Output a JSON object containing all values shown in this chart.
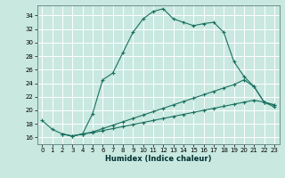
{
  "xlabel": "Humidex (Indice chaleur)",
  "bg_color": "#c8e8e0",
  "grid_color": "#ffffff",
  "line_color": "#1a7060",
  "xlim": [
    -0.5,
    23.5
  ],
  "ylim": [
    15.0,
    35.5
  ],
  "xticks": [
    0,
    1,
    2,
    3,
    4,
    5,
    6,
    7,
    8,
    9,
    10,
    11,
    12,
    13,
    14,
    15,
    16,
    17,
    18,
    19,
    20,
    21,
    22,
    23
  ],
  "yticks": [
    16,
    18,
    20,
    22,
    24,
    26,
    28,
    30,
    32,
    34
  ],
  "line1_x": [
    0,
    1,
    2,
    3,
    4,
    5,
    6,
    7,
    8,
    9,
    10,
    11,
    12,
    13,
    14,
    15,
    16,
    17,
    18,
    19,
    20,
    21,
    22,
    23
  ],
  "line1_y": [
    18.5,
    17.2,
    16.5,
    16.2,
    16.5,
    19.5,
    24.5,
    25.5,
    28.5,
    31.5,
    33.5,
    34.6,
    35.0,
    33.5,
    33.0,
    32.5,
    32.8,
    33.0,
    31.5,
    27.2,
    25.0,
    23.5,
    21.2,
    20.5
  ],
  "line2_x": [
    2,
    3,
    4,
    5,
    6,
    7,
    8,
    9,
    10,
    11,
    12,
    13,
    14,
    15,
    16,
    17,
    18,
    19,
    20,
    21,
    22,
    23
  ],
  "line2_y": [
    16.5,
    16.2,
    16.5,
    16.8,
    17.3,
    17.8,
    18.3,
    18.8,
    19.3,
    19.8,
    20.3,
    20.8,
    21.3,
    21.8,
    22.3,
    22.8,
    23.3,
    23.8,
    24.5,
    23.5,
    21.2,
    20.8
  ],
  "line3_x": [
    2,
    3,
    4,
    5,
    6,
    7,
    8,
    9,
    10,
    11,
    12,
    13,
    14,
    15,
    16,
    17,
    18,
    19,
    20,
    21,
    22,
    23
  ],
  "line3_y": [
    16.5,
    16.2,
    16.5,
    16.7,
    17.0,
    17.3,
    17.6,
    17.9,
    18.2,
    18.5,
    18.8,
    19.1,
    19.4,
    19.7,
    20.0,
    20.3,
    20.6,
    20.9,
    21.2,
    21.5,
    21.2,
    20.8
  ]
}
